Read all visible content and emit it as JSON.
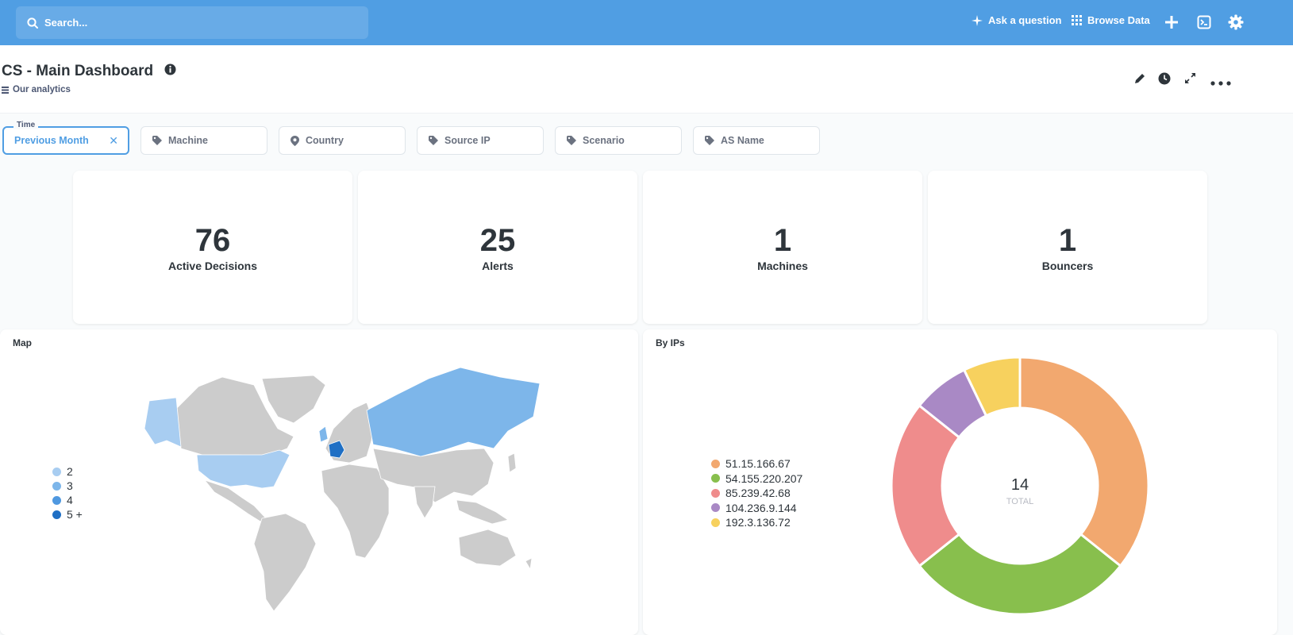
{
  "topbar": {
    "search_placeholder": "Search...",
    "ask_label": "Ask a question",
    "browse_label": "Browse Data",
    "bg_color": "#509ee3"
  },
  "header": {
    "title": "CS - Main Dashboard",
    "collection": "Our analytics"
  },
  "filters": [
    {
      "name": "time",
      "legend": "Time",
      "value": "Previous Month",
      "active": true,
      "icon": "calendar-icon"
    },
    {
      "name": "machine",
      "label": "Machine",
      "icon": "tag-icon"
    },
    {
      "name": "country",
      "label": "Country",
      "icon": "location-pin-icon"
    },
    {
      "name": "source-ip",
      "label": "Source IP",
      "icon": "tag-icon"
    },
    {
      "name": "scenario",
      "label": "Scenario",
      "icon": "tag-icon"
    },
    {
      "name": "as-name",
      "label": "AS Name",
      "icon": "tag-icon"
    }
  ],
  "cards": [
    {
      "value": "76",
      "label": "Active Decisions"
    },
    {
      "value": "25",
      "label": "Alerts"
    },
    {
      "value": "1",
      "label": "Machines"
    },
    {
      "value": "1",
      "label": "Bouncers"
    }
  ],
  "map": {
    "title": "Map",
    "legend": [
      {
        "label": "2",
        "color": "#a8cdf1"
      },
      {
        "label": "3",
        "color": "#7db6ea"
      },
      {
        "label": "4",
        "color": "#4f98e0"
      },
      {
        "label": "5 +",
        "color": "#1f6fc4"
      }
    ],
    "land_color": "#cccccc"
  },
  "by_ips": {
    "title": "By IPs",
    "total": "14",
    "total_label": "TOTAL"
  },
  "chart_data": {
    "type": "pie",
    "title": "By IPs",
    "categories": [
      "51.15.166.67",
      "54.155.220.207",
      "85.239.42.68",
      "104.236.9.144",
      "192.3.136.72"
    ],
    "values": [
      5,
      4,
      3,
      1,
      1
    ],
    "colors": [
      "#f2a86f",
      "#88bf4d",
      "#ef8c8c",
      "#a989c5",
      "#f7d15e"
    ],
    "total": 14
  }
}
